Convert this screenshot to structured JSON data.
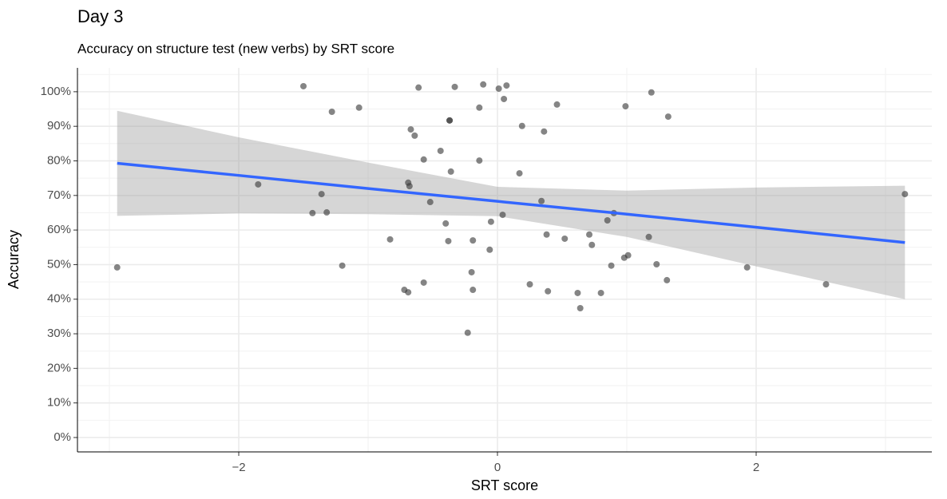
{
  "chart_data": {
    "type": "scatter",
    "title": "Day 3",
    "subtitle": "Accuracy on structure test (new verbs) by SRT score",
    "x_label": "SRT score",
    "y_label": "Accuracy",
    "xlim": [
      -3.247,
      3.358
    ],
    "ylim": [
      -4.16,
      106.9
    ],
    "xticks": [
      {
        "value": -2,
        "label": "−2"
      },
      0,
      2
    ],
    "xminor": [
      -3,
      -1,
      1,
      3
    ],
    "yticks": [
      {
        "value": 0,
        "label": "0%"
      },
      {
        "value": 10,
        "label": "10%"
      },
      {
        "value": 20,
        "label": "20%"
      },
      {
        "value": 30,
        "label": "30%"
      },
      {
        "value": 40,
        "label": "40%"
      },
      {
        "value": 50,
        "label": "50%"
      },
      {
        "value": 60,
        "label": "60%"
      },
      {
        "value": 70,
        "label": "70%"
      },
      {
        "value": 80,
        "label": "80%"
      },
      {
        "value": 90,
        "label": "90%"
      },
      {
        "value": 100,
        "label": "100%"
      }
    ],
    "yminor": [
      5,
      15,
      25,
      35,
      45,
      55,
      65,
      75,
      85,
      95,
      105
    ],
    "grid": true,
    "points": {
      "color": "#333333",
      "x": [
        -2.94,
        -1.85,
        -1.5,
        -1.28,
        -1.07,
        -1.36,
        -1.43,
        -1.32,
        -1.2,
        -0.83,
        -0.72,
        -0.69,
        -0.69,
        -0.68,
        -0.67,
        -0.64,
        -0.61,
        -0.57,
        -0.57,
        -0.52,
        -0.44,
        -0.4,
        -0.38,
        -0.37,
        -0.37,
        -0.36,
        -0.33,
        -0.23,
        -0.2,
        -0.19,
        -0.19,
        -0.14,
        -0.14,
        -0.11,
        -0.06,
        -0.05,
        0.01,
        0.04,
        0.05,
        0.07,
        0.17,
        0.19,
        0.25,
        0.34,
        0.36,
        0.38,
        0.39,
        0.46,
        0.52,
        0.62,
        0.64,
        0.71,
        0.73,
        0.8,
        0.85,
        0.88,
        0.9,
        0.98,
        1.01,
        0.99,
        1.17,
        1.19,
        1.23,
        1.31,
        1.32,
        1.93,
        2.54,
        3.15
      ],
      "values": [
        49.2,
        73.2,
        101.6,
        94.2,
        95.4,
        70.4,
        64.9,
        65.1,
        49.7,
        57.3,
        42.7,
        42.0,
        73.7,
        72.7,
        89.1,
        87.3,
        101.2,
        44.8,
        80.4,
        68.1,
        82.9,
        61.9,
        56.8,
        91.7,
        91.7,
        76.9,
        101.4,
        30.3,
        47.8,
        57.0,
        42.7,
        80.1,
        95.4,
        102.1,
        54.3,
        62.4,
        100.9,
        64.4,
        97.9,
        101.8,
        76.4,
        90.1,
        44.3,
        68.4,
        88.5,
        58.7,
        42.3,
        96.3,
        57.5,
        41.8,
        37.4,
        58.7,
        55.7,
        41.8,
        62.8,
        49.7,
        64.9,
        52.0,
        52.7,
        95.8,
        58.0,
        99.8,
        50.1,
        45.5,
        92.8,
        49.2,
        44.3,
        70.4
      ]
    },
    "fit": {
      "color": "#3366ff",
      "band_color": "#999999",
      "x": [
        -2.94,
        -2,
        -1,
        0,
        1,
        2,
        3.15
      ],
      "values": [
        79.3,
        75.8,
        72.0,
        68.3,
        64.6,
        60.8,
        56.4
      ],
      "upper": [
        94.5,
        86.8,
        79.5,
        72.5,
        71.4,
        72.3,
        72.8
      ],
      "lower": [
        64.1,
        64.8,
        64.6,
        64.0,
        58.0,
        49.5,
        40.0
      ]
    }
  }
}
